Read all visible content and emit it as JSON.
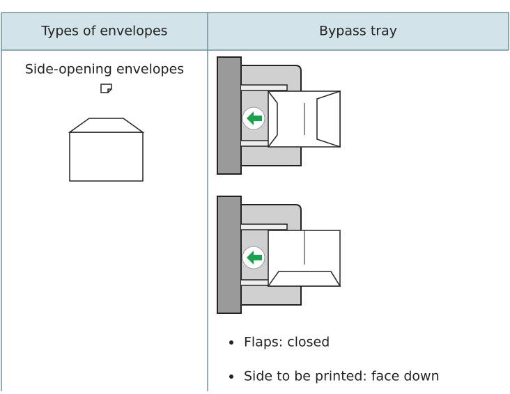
{
  "table": {
    "columns": [
      "Types of envelopes",
      "Bypass tray"
    ],
    "rows": [
      {
        "envelope_type": "Side-opening envelopes",
        "bypass_notes": [
          "Flaps: closed",
          "Side to be printed: face down"
        ]
      }
    ]
  }
}
